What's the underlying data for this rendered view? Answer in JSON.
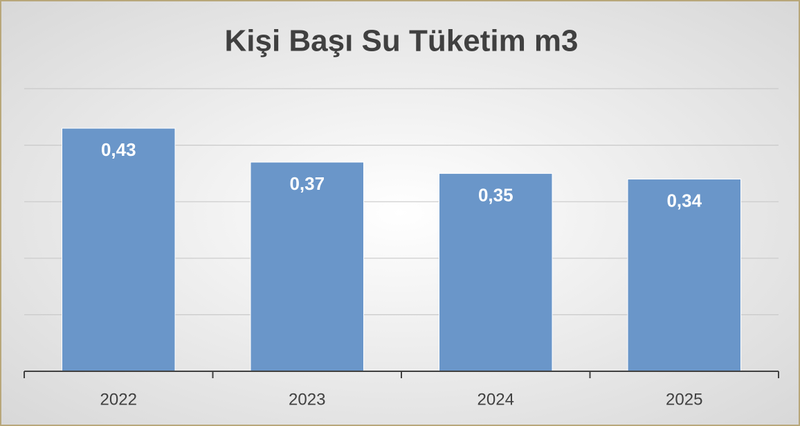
{
  "chart_data": {
    "type": "bar",
    "title": "Kişi Başı Su Tüketim m3",
    "categories": [
      "2022",
      "2023",
      "2024",
      "2025"
    ],
    "values": [
      0.43,
      0.37,
      0.35,
      0.34
    ],
    "value_labels": [
      "0,43",
      "0,37",
      "0,35",
      "0,34"
    ],
    "color": "#6a96c9",
    "ylim": [
      0,
      0.5
    ],
    "yticks": [
      0.1,
      0.2,
      0.3,
      0.4,
      0.5
    ],
    "grid": true
  }
}
